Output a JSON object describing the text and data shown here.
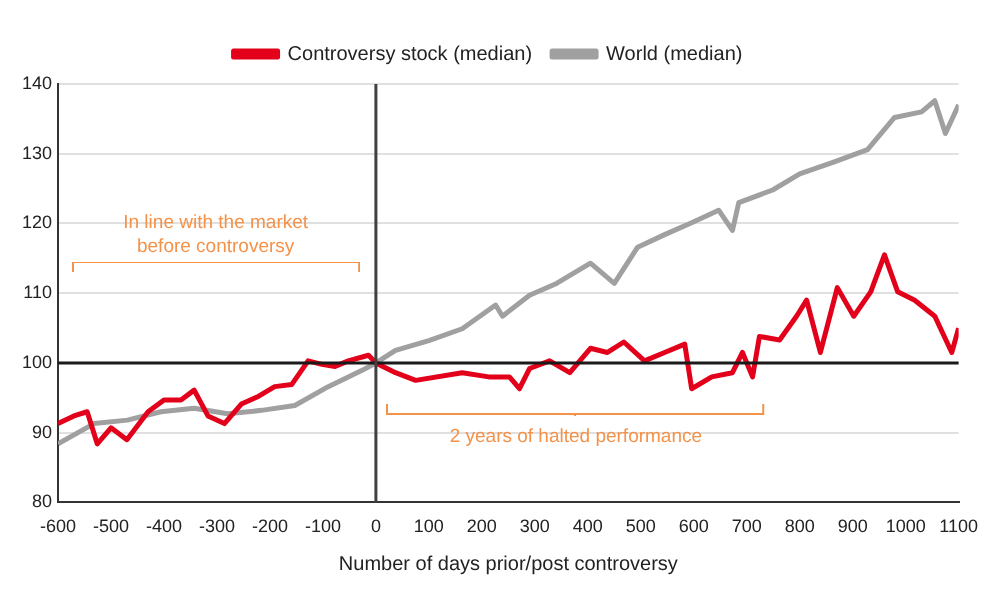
{
  "chart_data": {
    "type": "line",
    "xlabel": "Number of days prior/post controversy",
    "xlim": [
      -600,
      1100
    ],
    "xticks": [
      -600,
      -500,
      -400,
      -300,
      -200,
      -100,
      0,
      100,
      200,
      300,
      400,
      500,
      600,
      700,
      800,
      900,
      1000,
      1100
    ],
    "ylim": [
      80,
      140
    ],
    "yticks": [
      80,
      90,
      100,
      110,
      120,
      130,
      140
    ],
    "grid": "y",
    "legend": "top",
    "marker": "none",
    "line_style": "solid",
    "ref_lines": [
      {
        "axis": "y",
        "value": 100,
        "color": "#1a1a1a"
      },
      {
        "axis": "x",
        "value": 0,
        "color": "#404040"
      }
    ],
    "annotations": [
      "In line with the market\nbefore controversy",
      "2 years of halted performance"
    ],
    "series": [
      {
        "name": "Controversy stock (median)",
        "color": "#e3001b",
        "x": [
          -600,
          -570,
          -545,
          -526,
          -500,
          -470,
          -430,
          -400,
          -368,
          -343,
          -317,
          -286,
          -254,
          -222,
          -191,
          -159,
          -128,
          -102,
          -77,
          -52,
          -14,
          0,
          37,
          75,
          163,
          213,
          252,
          271,
          290,
          328,
          366,
          405,
          437,
          468,
          507,
          545,
          583,
          596,
          634,
          673,
          692,
          711,
          724,
          762,
          794,
          813,
          839,
          871,
          902,
          934,
          960,
          985,
          1017,
          1055,
          1087,
          1100
        ],
        "values": [
          91.3,
          92.4,
          93,
          88.4,
          90.7,
          89,
          93,
          94.7,
          94.7,
          96.1,
          92.4,
          91.3,
          94.1,
          95.2,
          96.6,
          96.9,
          100.3,
          99.8,
          99.5,
          100.3,
          101.1,
          100,
          98.6,
          97.5,
          98.6,
          98,
          98,
          96.3,
          99.2,
          100.3,
          98.6,
          102.1,
          101.5,
          103,
          100.3,
          101.5,
          102.7,
          96.3,
          98,
          98.6,
          101.5,
          98,
          103.8,
          103.3,
          106.7,
          109,
          101.5,
          110.8,
          106.7,
          110.2,
          115.5,
          110.2,
          109,
          106.7,
          101.5,
          105
        ]
      },
      {
        "name": "World (median)",
        "color": "#a0a0a0",
        "x": [
          -600,
          -532,
          -469,
          -406,
          -343,
          -280,
          -216,
          -153,
          -90,
          -27,
          0,
          37,
          100,
          163,
          226,
          239,
          290,
          341,
          405,
          450,
          494,
          545,
          596,
          647,
          673,
          685,
          749,
          800,
          864,
          928,
          979,
          1030,
          1055,
          1075,
          1100
        ],
        "values": [
          88.4,
          91.3,
          91.8,
          93,
          93.5,
          92.7,
          93.2,
          93.9,
          96.6,
          98.9,
          100,
          101.8,
          103.2,
          104.9,
          108.3,
          106.7,
          109.7,
          111.4,
          114.3,
          111.4,
          116.6,
          118.4,
          120.1,
          121.9,
          119,
          123,
          124.8,
          127.1,
          128.8,
          130.6,
          135.2,
          136,
          137.6,
          132.9,
          137
        ]
      }
    ]
  }
}
